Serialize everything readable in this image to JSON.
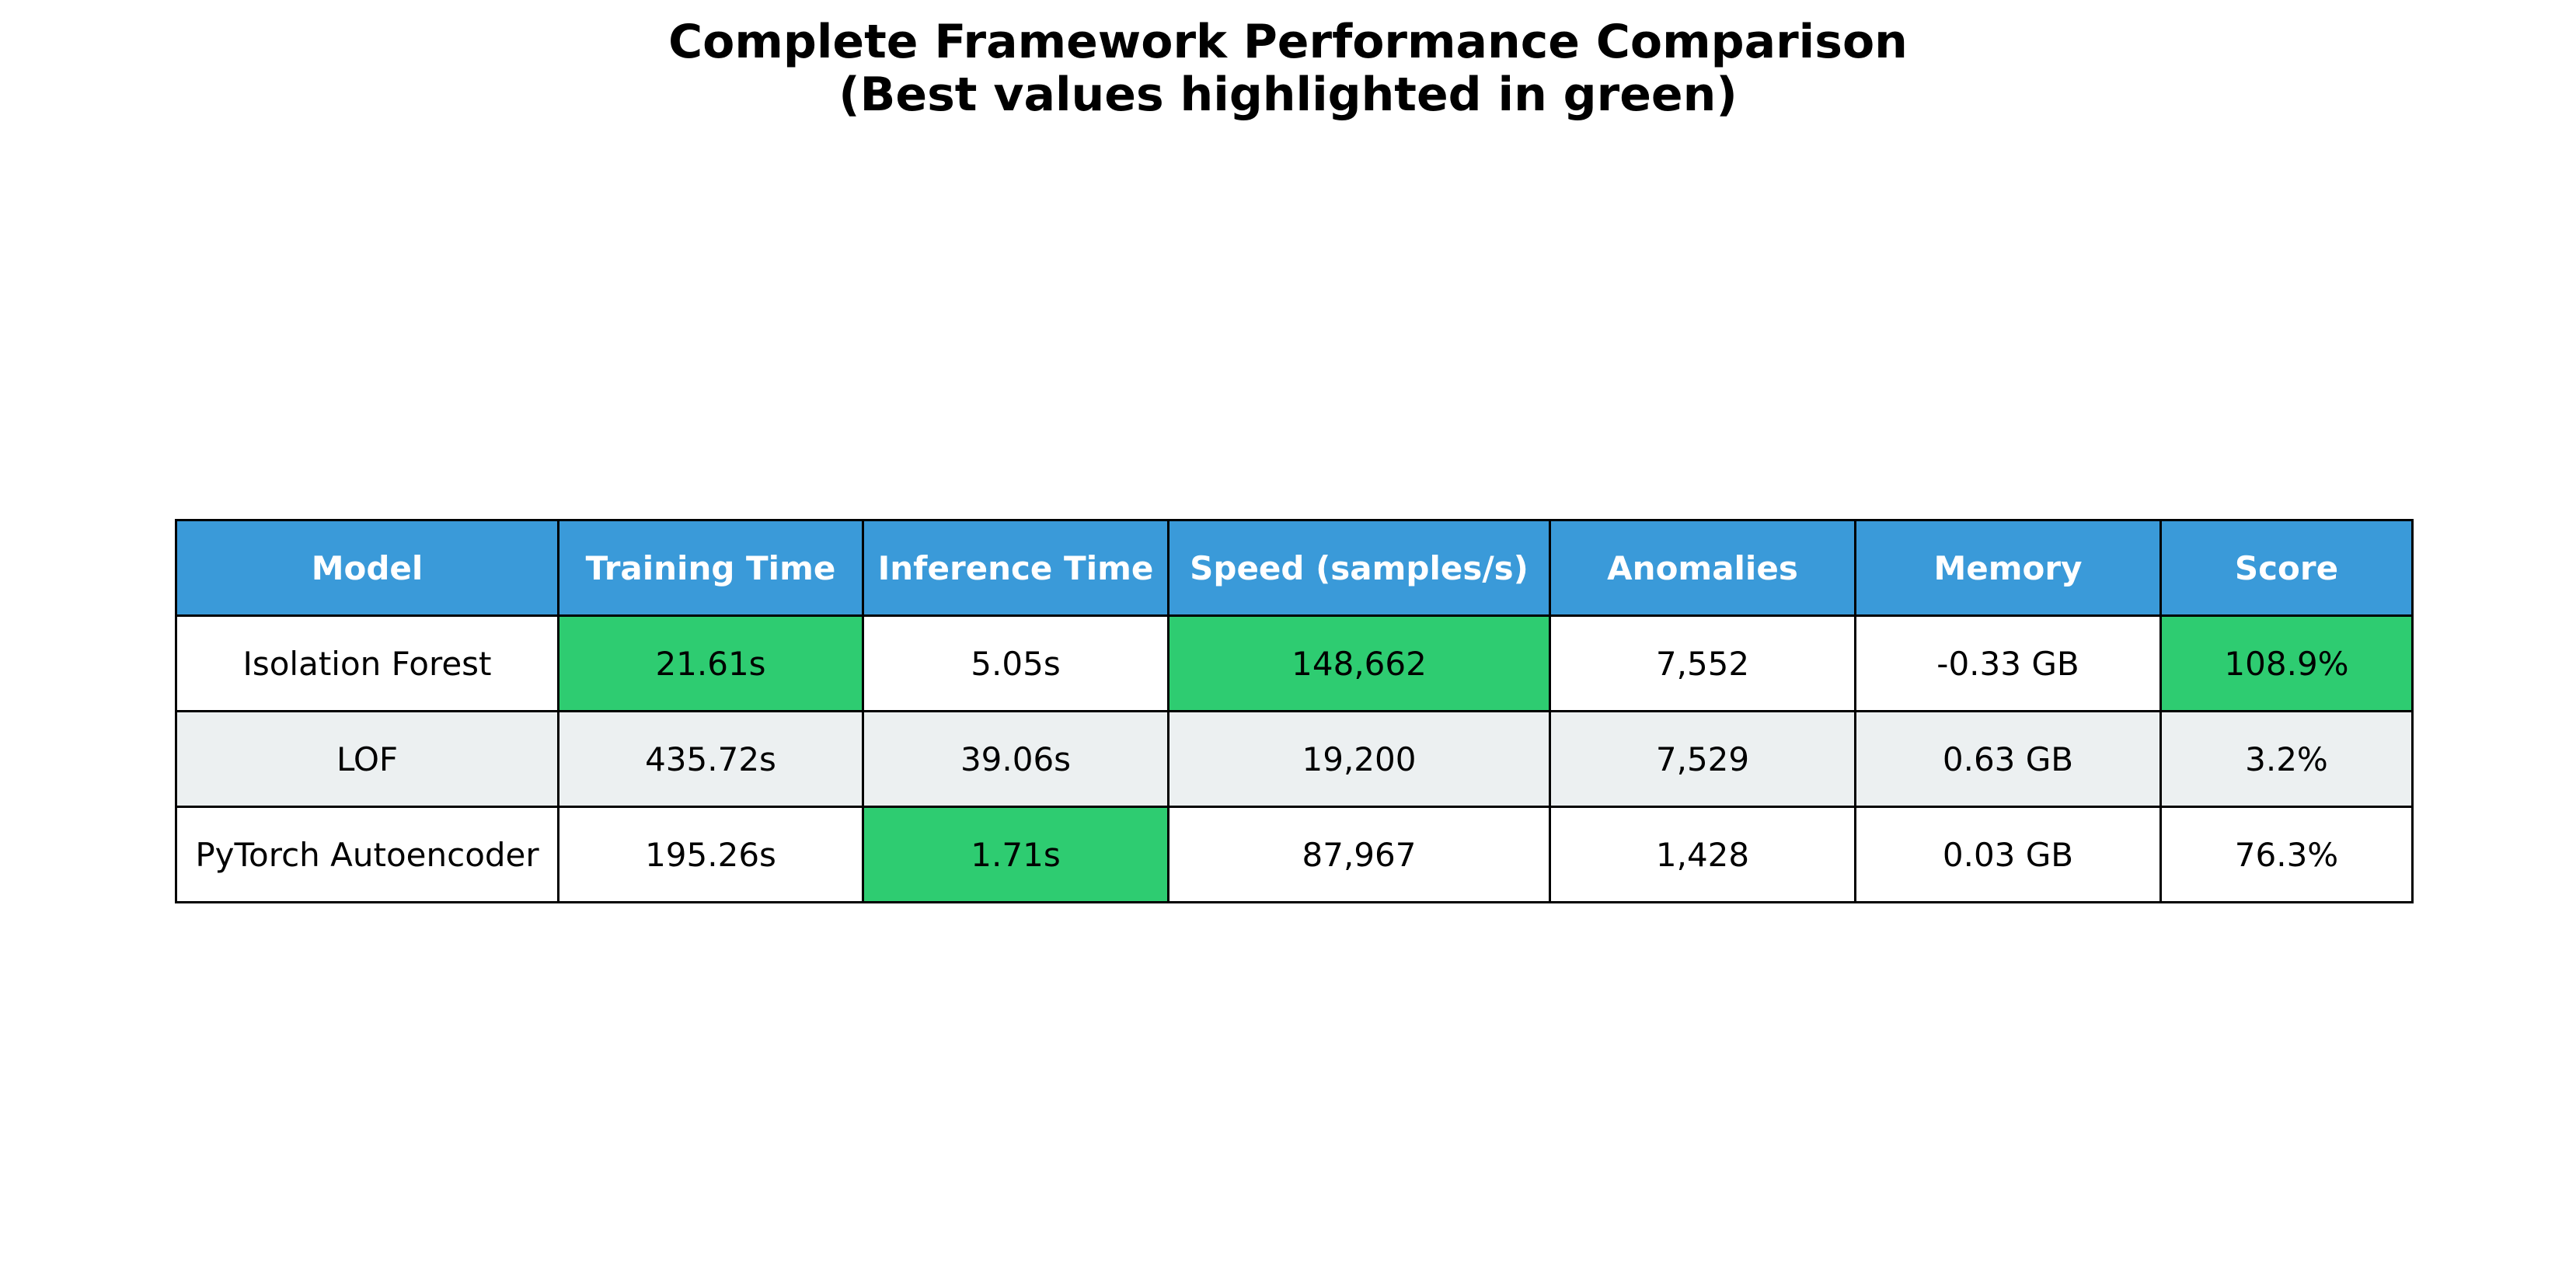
{
  "chart_data": {
    "type": "table",
    "title_lines": [
      "Complete Framework Performance Comparison",
      "(Best values highlighted in green)"
    ],
    "columns": [
      "Model",
      "Training Time",
      "Inference Time",
      "Speed (samples/s)",
      "Anomalies",
      "Memory",
      "Score"
    ],
    "rows": [
      [
        "Isolation Forest",
        "21.61s",
        "5.05s",
        "148,662",
        "7,552",
        "-0.33 GB",
        "108.9%"
      ],
      [
        "LOF",
        "435.72s",
        "39.06s",
        "19,200",
        "7,529",
        "0.63 GB",
        "3.2%"
      ],
      [
        "PyTorch Autoencoder",
        "195.26s",
        "1.71s",
        "87,967",
        "1,428",
        "0.03 GB",
        "76.3%"
      ]
    ],
    "highlighted_best": [
      [
        0,
        1
      ],
      [
        0,
        3
      ],
      [
        0,
        6
      ],
      [
        2,
        2
      ]
    ]
  },
  "colors": {
    "header_bg": "#3a9ad9",
    "header_text": "#ffffff",
    "best_highlight": "#2ecc71",
    "row_even": "#ffffff",
    "row_odd": "#ecf0f1",
    "border": "#000000"
  }
}
